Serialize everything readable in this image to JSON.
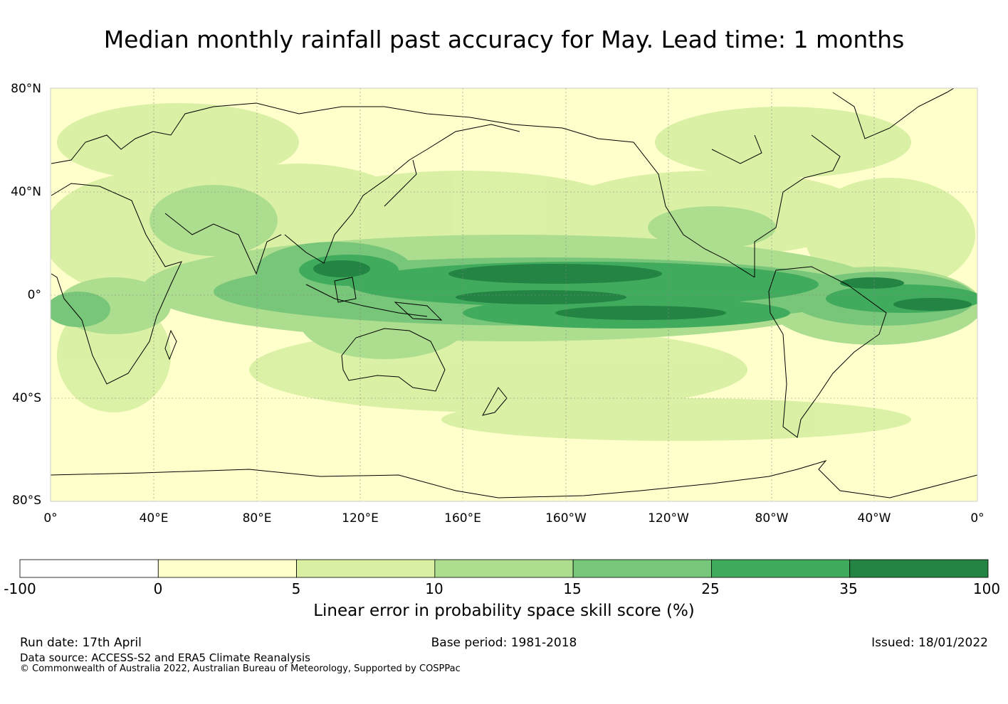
{
  "title": "Median monthly rainfall past accuracy for May. Lead time: 1 months",
  "map": {
    "lat_labels": [
      "80°N",
      "40°N",
      "0°",
      "40°S",
      "80°S"
    ],
    "lon_labels": [
      "0°",
      "40°E",
      "80°E",
      "120°E",
      "160°E",
      "160°W",
      "120°W",
      "80°W",
      "40°W",
      "0°"
    ],
    "extent": {
      "lon_range": [
        0,
        360
      ],
      "lat_range": [
        -80,
        80
      ]
    },
    "gridlines": true
  },
  "colorbar": {
    "title": "Linear error in probability space skill score (%)",
    "levels": [
      "-100",
      "0",
      "5",
      "10",
      "15",
      "25",
      "35",
      "100"
    ],
    "colors": [
      "#ffffff",
      "#ffffcc",
      "#d9f0a3",
      "#addd8e",
      "#78c679",
      "#41ab5d",
      "#238443"
    ]
  },
  "footer": {
    "run_date": "Run date: 17th April",
    "base_period": "Base period: 1981-2018",
    "issued": "Issued: 18/01/2022",
    "data_source": "Data source: ACCESS-S2 and ERA5 Climate Reanalysis",
    "copyright": "© Commonwealth of Australia 2022, Australian Bureau of Meteorology, Supported by COSPPac"
  }
}
